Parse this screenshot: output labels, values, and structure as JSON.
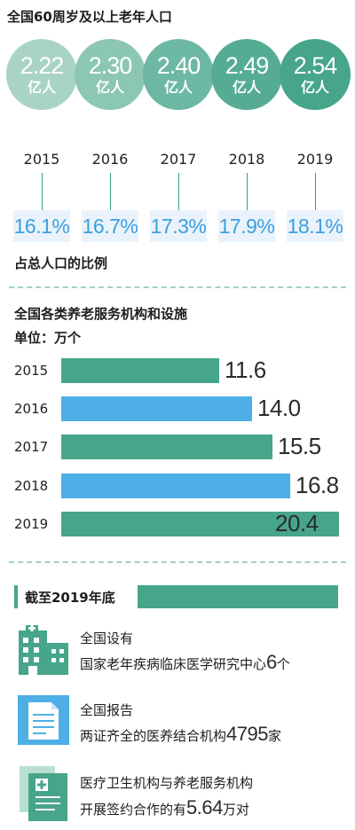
{
  "population_section": {
    "title": "全国60周岁及以上老年人口",
    "unit": "亿人",
    "footer": "占总人口的比例"
  },
  "facility_section": {
    "title": "全国各类养老服务机构和设施",
    "unit_label": "单位：万个"
  },
  "summary_section": {
    "header": "截至2019年底",
    "items": [
      {
        "line1": "全国设有",
        "line2_prefix": "国家老年疾病临床医学研究中心",
        "value": "6",
        "suffix": "个"
      },
      {
        "line1": "全国报告",
        "line2_prefix": "两证齐全的医养结合机构",
        "value": "4795",
        "suffix": "家"
      },
      {
        "line1": "医疗卫生机构与养老服务机构",
        "line2_prefix": "开展签约合作的有",
        "value": "5.64",
        "suffix": "万对"
      }
    ]
  },
  "chart_data": [
    {
      "type": "bar",
      "title": "全国60周岁及以上老年人口",
      "categories": [
        "2015",
        "2016",
        "2017",
        "2018",
        "2019"
      ],
      "series": [
        {
          "name": "亿人",
          "values": [
            2.22,
            2.3,
            2.4,
            2.49,
            2.54
          ],
          "labels": [
            "2.22",
            "2.30",
            "2.40",
            "2.49",
            "2.54"
          ]
        },
        {
          "name": "占总人口的比例",
          "values": [
            16.1,
            16.7,
            17.3,
            17.9,
            18.1
          ],
          "labels": [
            "16.1%",
            "16.7%",
            "17.3%",
            "17.9%",
            "18.1%"
          ]
        }
      ]
    },
    {
      "type": "bar",
      "title": "全国各类养老服务机构和设施",
      "ylabel": "单位：万个",
      "orientation": "horizontal",
      "categories": [
        "2015",
        "2016",
        "2017",
        "2018",
        "2019"
      ],
      "values": [
        11.6,
        14.0,
        15.5,
        16.8,
        20.4
      ],
      "labels": [
        "11.6",
        "14.0",
        "15.5",
        "16.8",
        "20.4"
      ],
      "xlim": [
        0,
        20.4
      ]
    }
  ],
  "colors": {
    "circles": [
      "#a9d3c6",
      "#8cc6b5",
      "#6db8a3",
      "#55ac93",
      "#46a58a"
    ],
    "bar_green": "#46a58a",
    "bar_blue": "#4dafe6",
    "percent_text": "#3b9fe0",
    "percent_box": "#eaf3fb",
    "icon_blue": "#4dafe6",
    "icon_green": "#46a58a"
  },
  "icons": [
    "building-icon",
    "report-document-icon",
    "contract-documents-icon"
  ]
}
